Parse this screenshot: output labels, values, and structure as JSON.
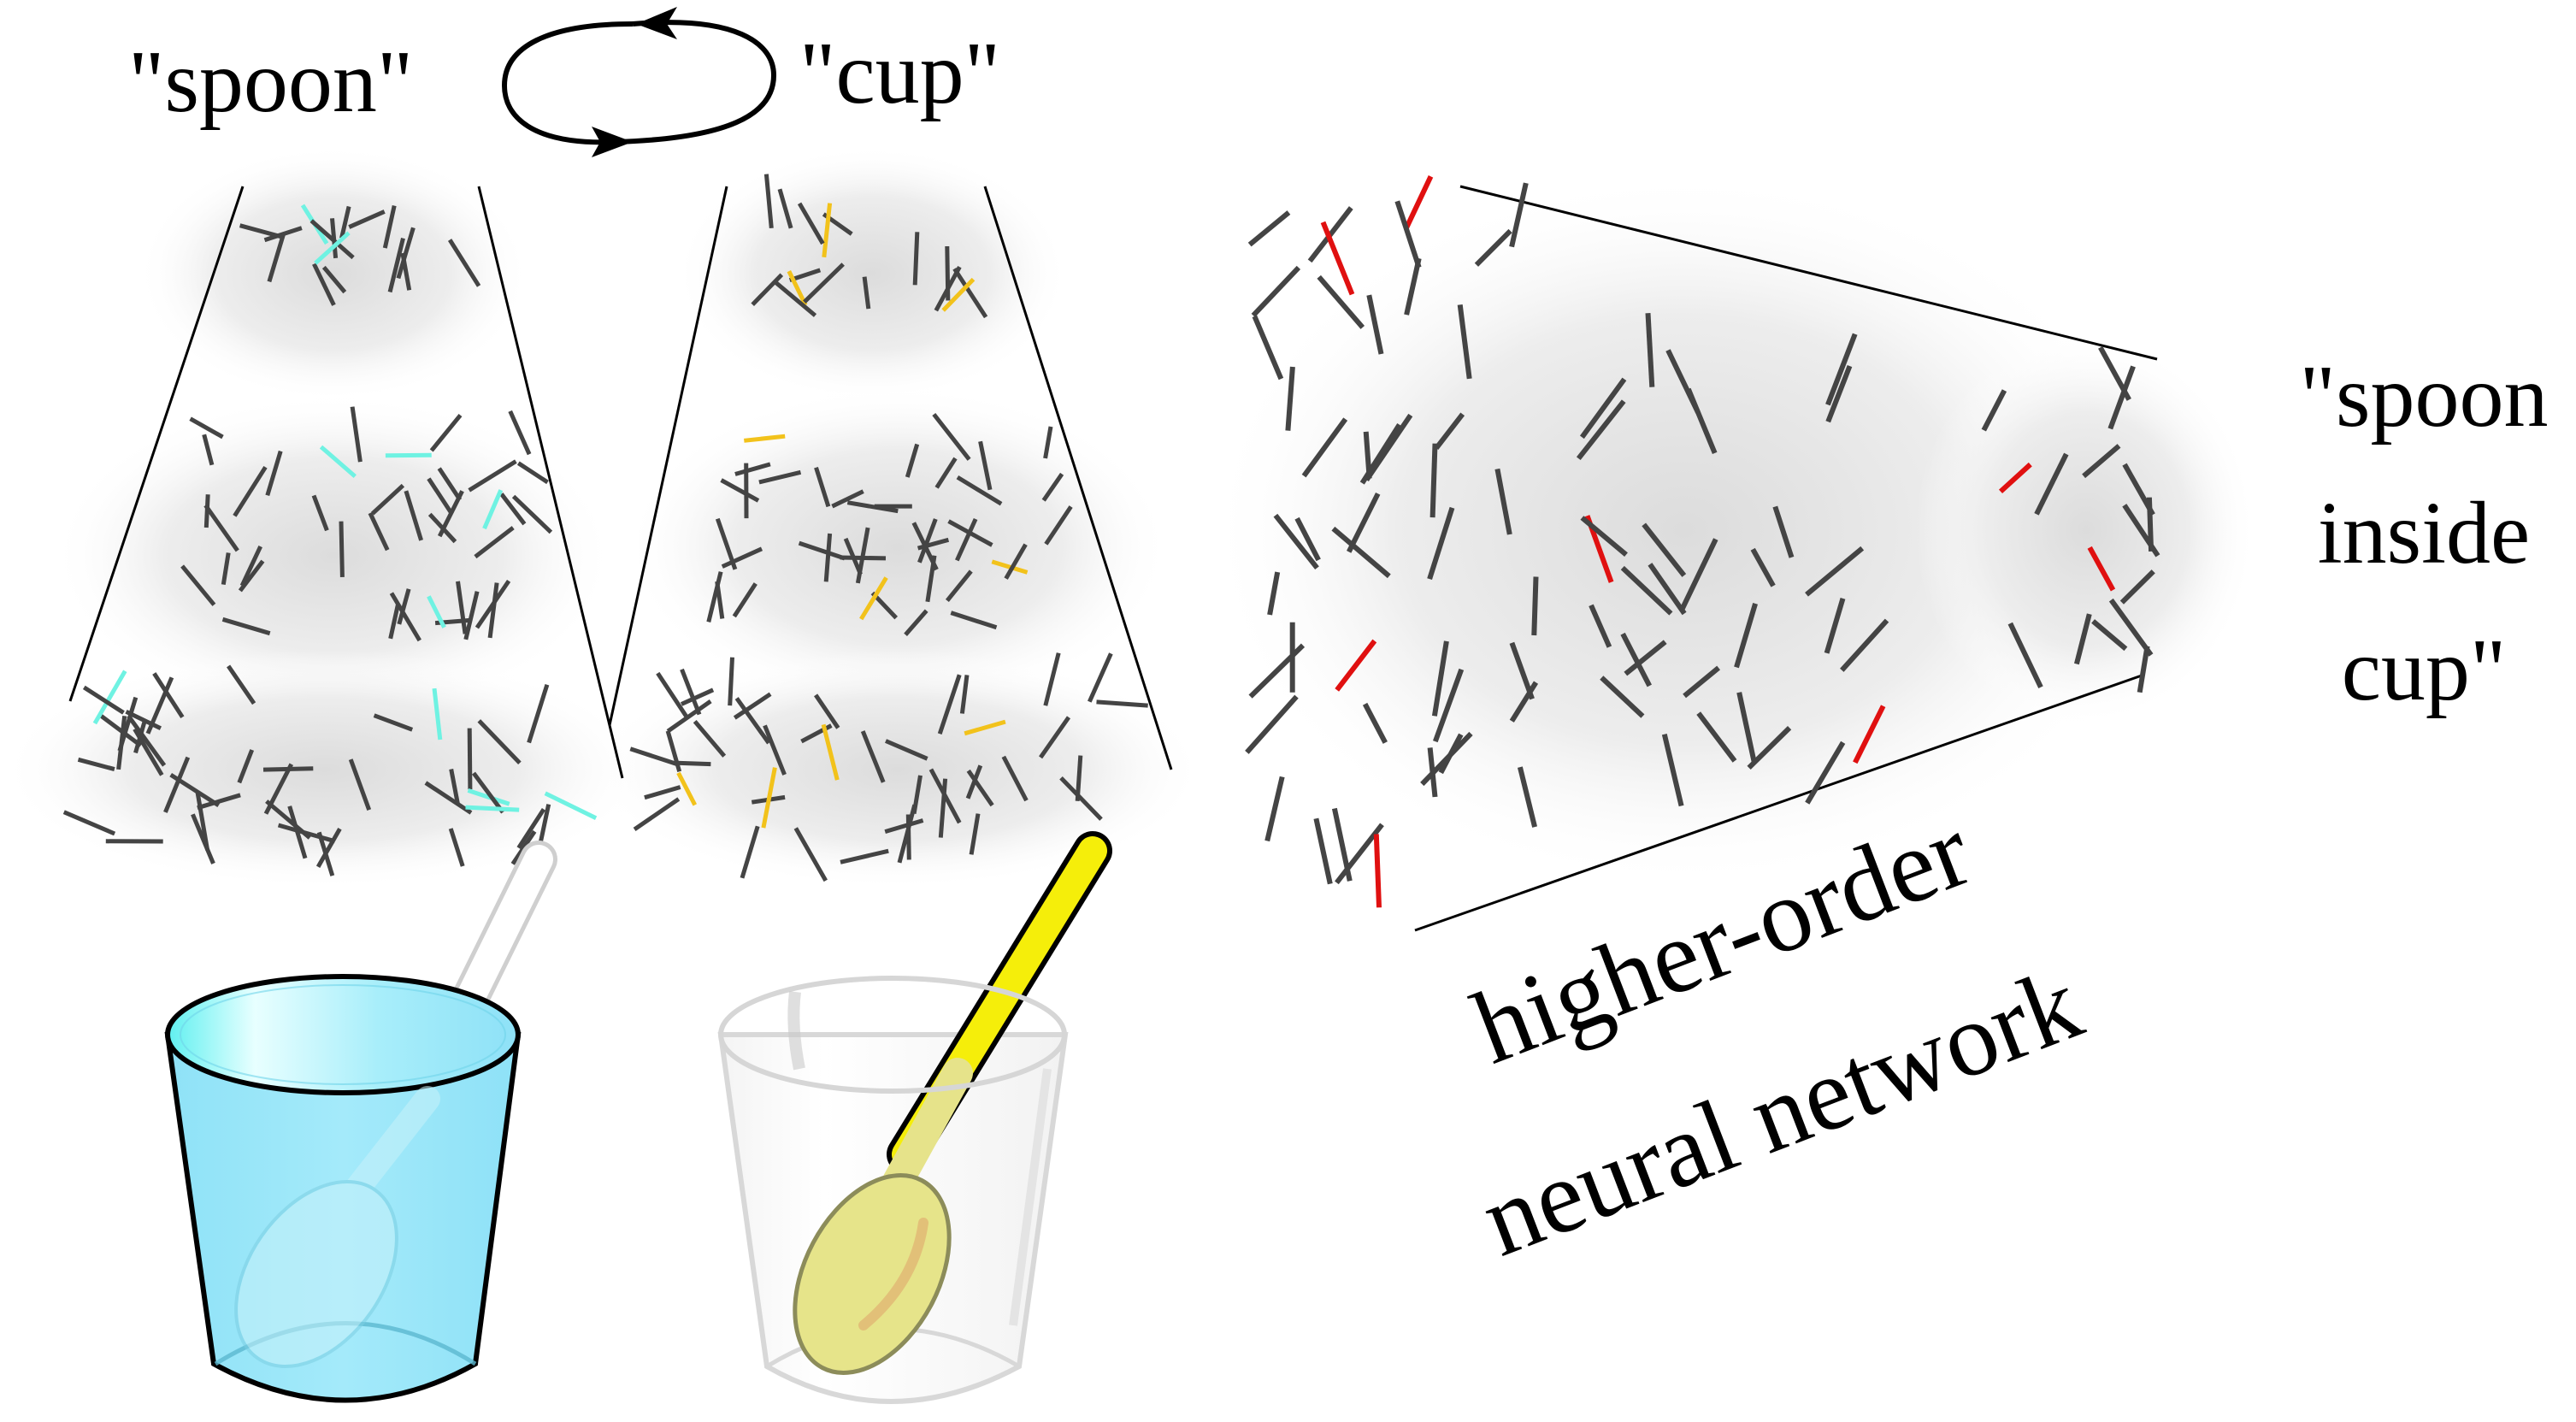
{
  "labels": {
    "spoon": "\"spoon\"",
    "cup": "\"cup\"",
    "result_line1": "\"spoon",
    "result_line2": "inside",
    "result_line3": "cup\"",
    "network_line1": "higher-order",
    "network_line2": "neural network"
  },
  "colors": {
    "neuron": "#444444",
    "spoon_active": "#6ff2e2",
    "cup_active": "#f2c21b",
    "higher_active": "#e01010",
    "blue_cup": "#9ee6f9",
    "blue_cup_rim": "#7ff1f8",
    "yellow_spoon": "#f5ee0a",
    "yellow_spoon_head": "#e8e58d",
    "glass_rim": "#d6d6d6"
  },
  "icons": {
    "cycle": "cycle-arrows-icon",
    "blue_cup": "blue-cup-icon",
    "clear_cup": "clear-cup-icon",
    "white_spoon": "white-spoon-icon",
    "yellow_spoon": "yellow-spoon-icon"
  }
}
